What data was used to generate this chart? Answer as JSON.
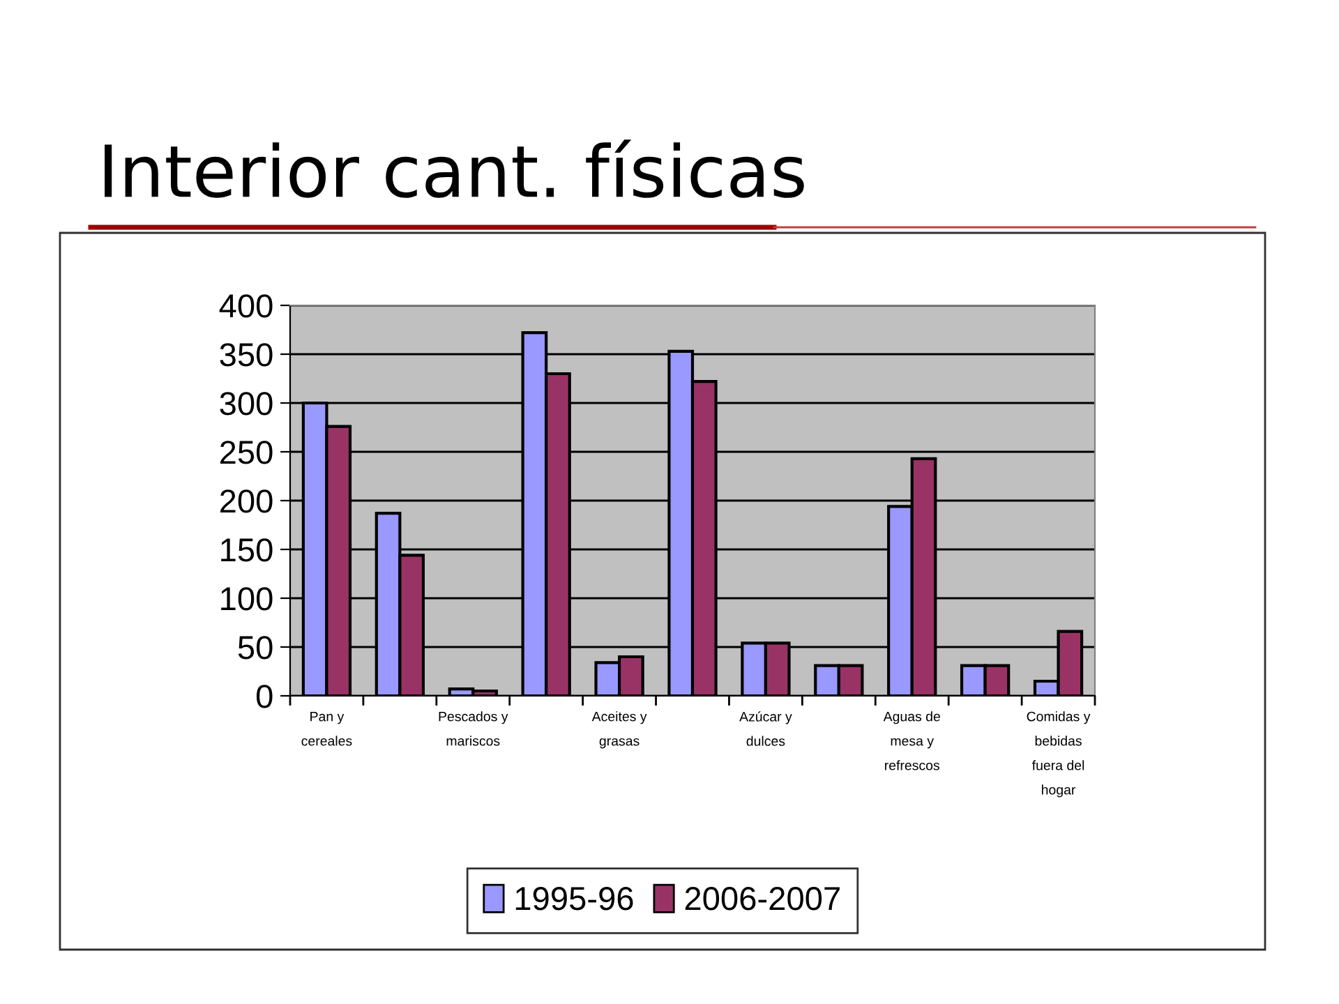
{
  "chart_data": {
    "type": "bar",
    "title": "Interior cant. físicas",
    "categories": [
      "Pan y\ncereales",
      null,
      "Pescados y\nmariscos",
      null,
      "Aceites y\ngrasas",
      null,
      "Azúcar y\ndulces",
      null,
      "Aguas de\nmesa y\nrefrescos",
      null,
      "Comidas y\nbebidas\nfuera del\nhogar"
    ],
    "series": [
      {
        "name": "1995-96",
        "color": "#9999ff",
        "values": [
          300,
          187,
          7,
          372,
          34,
          353,
          54,
          31,
          194,
          31,
          15
        ]
      },
      {
        "name": "2006-2007",
        "color": "#993366",
        "values": [
          276,
          144,
          5,
          330,
          40,
          322,
          54,
          31,
          243,
          31,
          66
        ]
      }
    ],
    "ylim": [
      0,
      400
    ],
    "yticks": [
      0,
      50,
      100,
      150,
      200,
      250,
      300,
      350,
      400
    ],
    "grid": "y",
    "legend": "bottom"
  }
}
